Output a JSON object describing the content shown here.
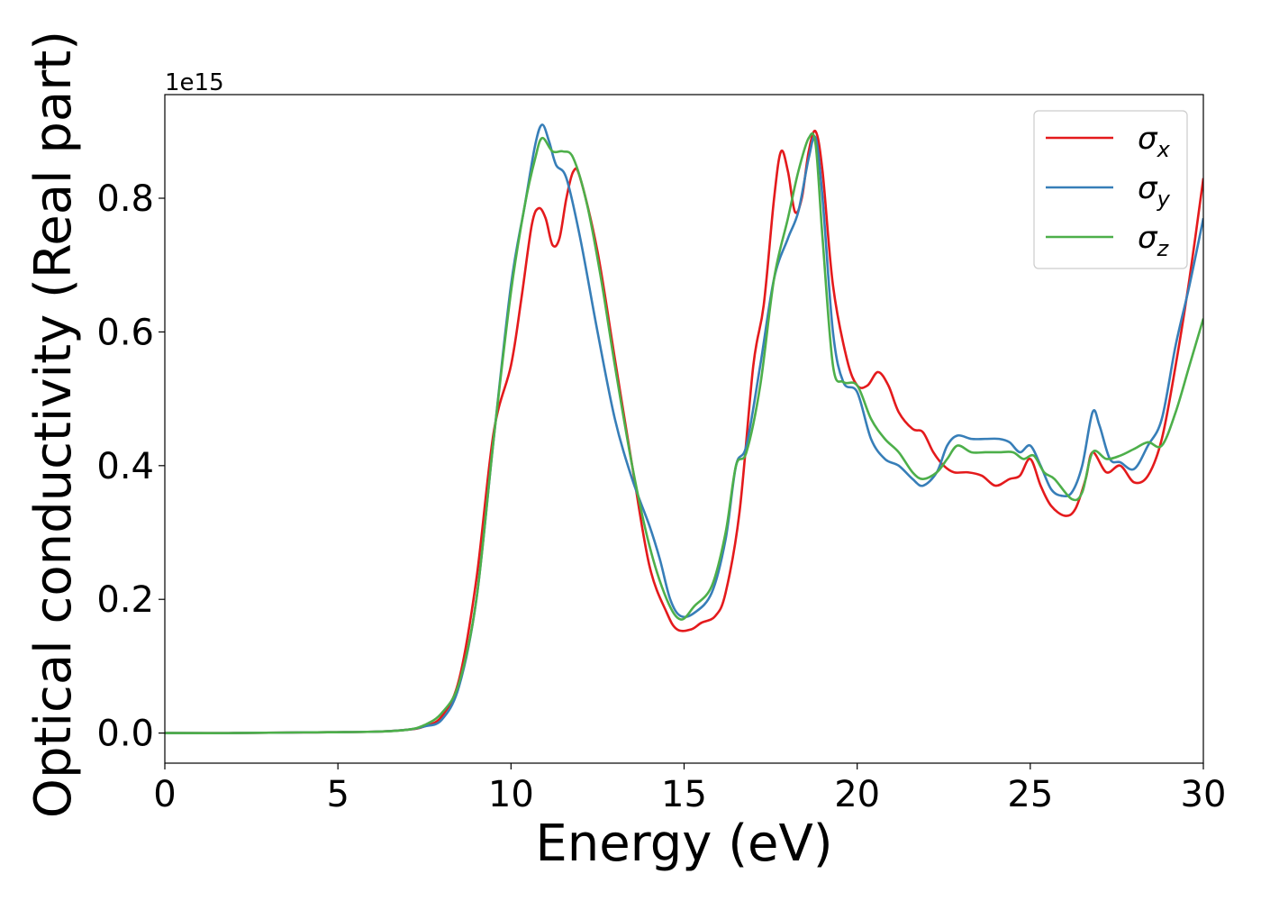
{
  "chart_data": {
    "type": "line",
    "title": "",
    "xlabel": "Energy (eV)",
    "ylabel": "Optical conductivity (Real part)",
    "y_offset_label": "1e15",
    "xlim": [
      0,
      30
    ],
    "ylim": [
      -0.045,
      0.955
    ],
    "xticks": [
      0,
      5,
      10,
      15,
      20,
      25,
      30
    ],
    "xtick_labels": [
      "0",
      "5",
      "10",
      "15",
      "20",
      "25",
      "30"
    ],
    "yticks": [
      0.0,
      0.2,
      0.4,
      0.6,
      0.8
    ],
    "ytick_labels": [
      "0.0",
      "0.2",
      "0.4",
      "0.6",
      "0.8"
    ],
    "grid": false,
    "legend_position": "top-right",
    "series": [
      {
        "name": "σx",
        "legend_base": "σ",
        "legend_sub": "x",
        "color": "#e41a1c",
        "points": [
          [
            0,
            0
          ],
          [
            2,
            0
          ],
          [
            4,
            0.001
          ],
          [
            6,
            0.002
          ],
          [
            7,
            0.005
          ],
          [
            7.5,
            0.01
          ],
          [
            8,
            0.025
          ],
          [
            8.5,
            0.08
          ],
          [
            9,
            0.23
          ],
          [
            9.5,
            0.45
          ],
          [
            10,
            0.55
          ],
          [
            10.3,
            0.65
          ],
          [
            10.6,
            0.76
          ],
          [
            10.8,
            0.785
          ],
          [
            11,
            0.77
          ],
          [
            11.2,
            0.73
          ],
          [
            11.4,
            0.74
          ],
          [
            11.6,
            0.8
          ],
          [
            11.8,
            0.84
          ],
          [
            12,
            0.83
          ],
          [
            12.5,
            0.72
          ],
          [
            13,
            0.56
          ],
          [
            13.5,
            0.4
          ],
          [
            14,
            0.25
          ],
          [
            14.5,
            0.18
          ],
          [
            14.8,
            0.155
          ],
          [
            15.2,
            0.155
          ],
          [
            15.5,
            0.165
          ],
          [
            15.9,
            0.175
          ],
          [
            16.2,
            0.21
          ],
          [
            16.6,
            0.33
          ],
          [
            17,
            0.55
          ],
          [
            17.3,
            0.64
          ],
          [
            17.6,
            0.8
          ],
          [
            17.8,
            0.87
          ],
          [
            18,
            0.84
          ],
          [
            18.2,
            0.78
          ],
          [
            18.4,
            0.8
          ],
          [
            18.6,
            0.87
          ],
          [
            18.8,
            0.9
          ],
          [
            19,
            0.84
          ],
          [
            19.3,
            0.67
          ],
          [
            19.7,
            0.56
          ],
          [
            20,
            0.52
          ],
          [
            20.3,
            0.52
          ],
          [
            20.6,
            0.54
          ],
          [
            20.9,
            0.52
          ],
          [
            21.2,
            0.48
          ],
          [
            21.6,
            0.455
          ],
          [
            21.9,
            0.45
          ],
          [
            22.2,
            0.42
          ],
          [
            22.5,
            0.4
          ],
          [
            22.8,
            0.39
          ],
          [
            23.2,
            0.39
          ],
          [
            23.6,
            0.385
          ],
          [
            24,
            0.37
          ],
          [
            24.4,
            0.38
          ],
          [
            24.7,
            0.385
          ],
          [
            25,
            0.41
          ],
          [
            25.3,
            0.37
          ],
          [
            25.6,
            0.34
          ],
          [
            26,
            0.325
          ],
          [
            26.3,
            0.335
          ],
          [
            26.6,
            0.38
          ],
          [
            26.8,
            0.42
          ],
          [
            27.2,
            0.39
          ],
          [
            27.6,
            0.4
          ],
          [
            28,
            0.375
          ],
          [
            28.4,
            0.385
          ],
          [
            28.8,
            0.44
          ],
          [
            29.2,
            0.55
          ],
          [
            29.6,
            0.68
          ],
          [
            30,
            0.83
          ]
        ]
      },
      {
        "name": "σy",
        "legend_base": "σ",
        "legend_sub": "y",
        "color": "#377eb8",
        "points": [
          [
            0,
            0
          ],
          [
            2,
            0
          ],
          [
            4,
            0.001
          ],
          [
            6,
            0.002
          ],
          [
            7,
            0.005
          ],
          [
            7.5,
            0.01
          ],
          [
            8,
            0.02
          ],
          [
            8.5,
            0.07
          ],
          [
            9,
            0.2
          ],
          [
            9.5,
            0.44
          ],
          [
            10,
            0.67
          ],
          [
            10.4,
            0.79
          ],
          [
            10.7,
            0.88
          ],
          [
            10.9,
            0.91
          ],
          [
            11.1,
            0.885
          ],
          [
            11.3,
            0.85
          ],
          [
            11.6,
            0.83
          ],
          [
            12,
            0.74
          ],
          [
            12.5,
            0.6
          ],
          [
            13,
            0.47
          ],
          [
            13.5,
            0.38
          ],
          [
            14,
            0.31
          ],
          [
            14.3,
            0.26
          ],
          [
            14.6,
            0.2
          ],
          [
            14.9,
            0.175
          ],
          [
            15.3,
            0.18
          ],
          [
            15.8,
            0.21
          ],
          [
            16.2,
            0.29
          ],
          [
            16.5,
            0.4
          ],
          [
            16.8,
            0.43
          ],
          [
            17.2,
            0.55
          ],
          [
            17.6,
            0.68
          ],
          [
            18,
            0.74
          ],
          [
            18.3,
            0.78
          ],
          [
            18.6,
            0.86
          ],
          [
            18.8,
            0.89
          ],
          [
            19,
            0.8
          ],
          [
            19.3,
            0.6
          ],
          [
            19.6,
            0.525
          ],
          [
            20,
            0.51
          ],
          [
            20.4,
            0.44
          ],
          [
            20.8,
            0.41
          ],
          [
            21.2,
            0.4
          ],
          [
            21.6,
            0.38
          ],
          [
            21.9,
            0.37
          ],
          [
            22.3,
            0.39
          ],
          [
            22.6,
            0.43
          ],
          [
            22.9,
            0.445
          ],
          [
            23.3,
            0.44
          ],
          [
            23.7,
            0.44
          ],
          [
            24.1,
            0.44
          ],
          [
            24.4,
            0.435
          ],
          [
            24.7,
            0.42
          ],
          [
            25,
            0.43
          ],
          [
            25.3,
            0.4
          ],
          [
            25.6,
            0.365
          ],
          [
            25.9,
            0.355
          ],
          [
            26.2,
            0.36
          ],
          [
            26.5,
            0.4
          ],
          [
            26.8,
            0.48
          ],
          [
            27,
            0.46
          ],
          [
            27.3,
            0.41
          ],
          [
            27.6,
            0.405
          ],
          [
            28,
            0.395
          ],
          [
            28.4,
            0.43
          ],
          [
            28.8,
            0.47
          ],
          [
            29.2,
            0.58
          ],
          [
            29.6,
            0.67
          ],
          [
            30,
            0.77
          ]
        ]
      },
      {
        "name": "σz",
        "legend_base": "σ",
        "legend_sub": "z",
        "color": "#4daf4a",
        "points": [
          [
            0,
            0
          ],
          [
            2,
            0
          ],
          [
            4,
            0.001
          ],
          [
            6,
            0.002
          ],
          [
            7,
            0.005
          ],
          [
            7.5,
            0.012
          ],
          [
            8,
            0.03
          ],
          [
            8.5,
            0.075
          ],
          [
            9,
            0.2
          ],
          [
            9.5,
            0.44
          ],
          [
            10,
            0.66
          ],
          [
            10.4,
            0.79
          ],
          [
            10.7,
            0.86
          ],
          [
            10.9,
            0.89
          ],
          [
            11.2,
            0.87
          ],
          [
            11.5,
            0.87
          ],
          [
            11.8,
            0.86
          ],
          [
            12.2,
            0.79
          ],
          [
            12.6,
            0.68
          ],
          [
            13,
            0.55
          ],
          [
            13.5,
            0.4
          ],
          [
            14,
            0.28
          ],
          [
            14.5,
            0.2
          ],
          [
            14.9,
            0.17
          ],
          [
            15.3,
            0.19
          ],
          [
            15.8,
            0.22
          ],
          [
            16.2,
            0.3
          ],
          [
            16.5,
            0.4
          ],
          [
            16.8,
            0.42
          ],
          [
            17.2,
            0.52
          ],
          [
            17.6,
            0.68
          ],
          [
            18,
            0.77
          ],
          [
            18.3,
            0.84
          ],
          [
            18.6,
            0.89
          ],
          [
            18.8,
            0.88
          ],
          [
            19,
            0.74
          ],
          [
            19.3,
            0.55
          ],
          [
            19.6,
            0.525
          ],
          [
            20,
            0.52
          ],
          [
            20.4,
            0.47
          ],
          [
            20.8,
            0.44
          ],
          [
            21.2,
            0.42
          ],
          [
            21.6,
            0.39
          ],
          [
            21.9,
            0.38
          ],
          [
            22.3,
            0.39
          ],
          [
            22.6,
            0.41
          ],
          [
            22.9,
            0.43
          ],
          [
            23.3,
            0.42
          ],
          [
            23.7,
            0.42
          ],
          [
            24.1,
            0.42
          ],
          [
            24.5,
            0.42
          ],
          [
            24.8,
            0.41
          ],
          [
            25.1,
            0.415
          ],
          [
            25.4,
            0.39
          ],
          [
            25.7,
            0.38
          ],
          [
            26.2,
            0.35
          ],
          [
            26.5,
            0.36
          ],
          [
            26.8,
            0.42
          ],
          [
            27.2,
            0.41
          ],
          [
            27.6,
            0.415
          ],
          [
            28,
            0.425
          ],
          [
            28.4,
            0.435
          ],
          [
            28.8,
            0.43
          ],
          [
            29.2,
            0.48
          ],
          [
            29.6,
            0.55
          ],
          [
            30,
            0.62
          ]
        ]
      }
    ]
  }
}
